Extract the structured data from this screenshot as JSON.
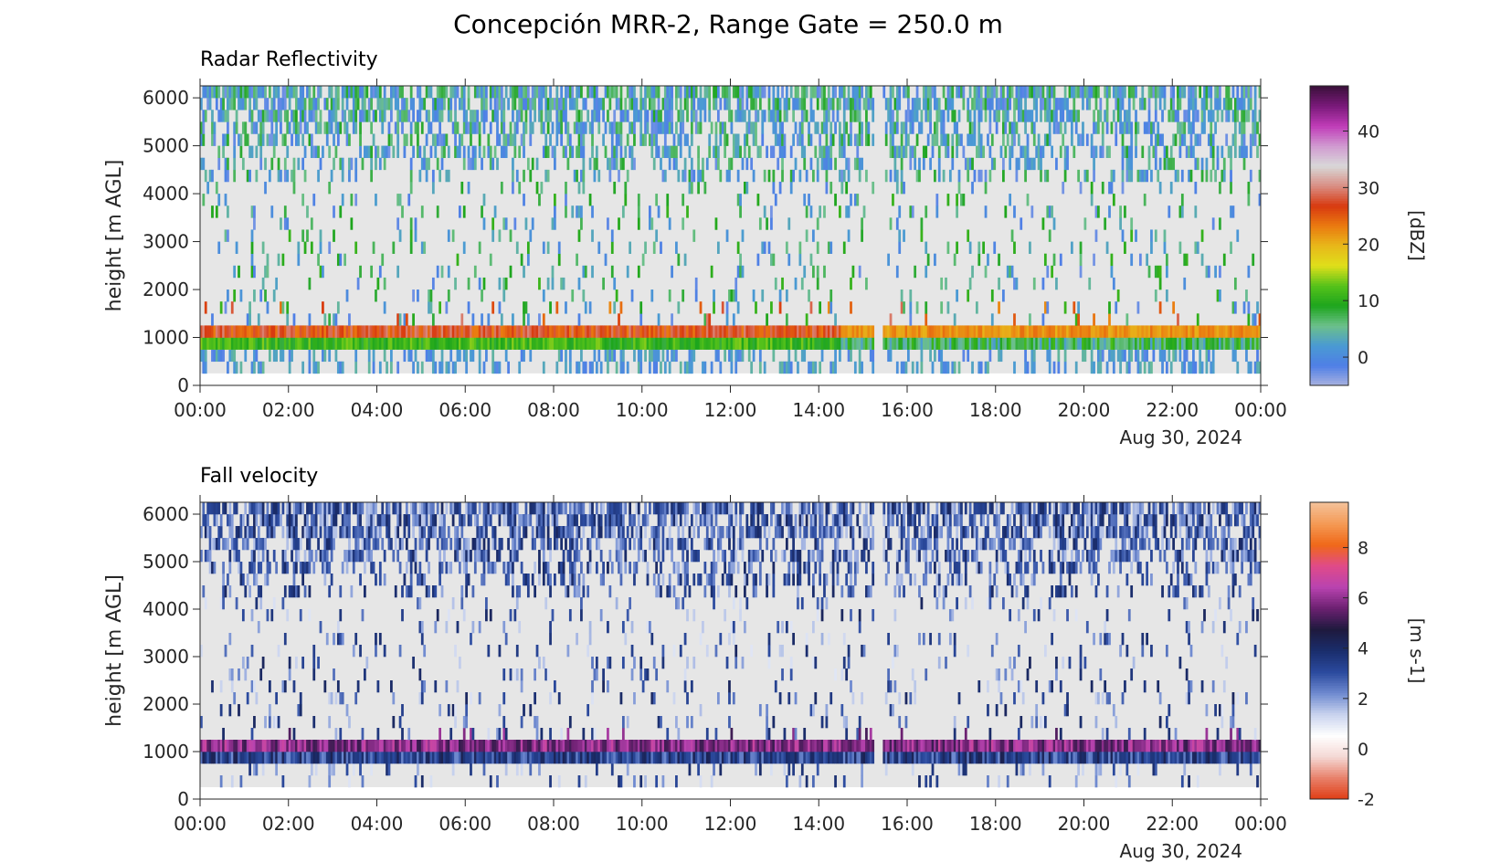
{
  "figure": {
    "title": "Concepción MRR-2, Range Gate = 250.0 m"
  },
  "chart_data": [
    {
      "type": "heatmap",
      "title": "Radar Reflectivity",
      "xlabel": "",
      "ylabel": "height [m AGL]",
      "date_label": "Aug 30, 2024",
      "x_ticks": [
        "00:00",
        "02:00",
        "04:00",
        "06:00",
        "08:00",
        "10:00",
        "12:00",
        "14:00",
        "16:00",
        "18:00",
        "20:00",
        "22:00",
        "00:00"
      ],
      "x_range_hours": [
        0,
        24
      ],
      "y_ticks": [
        0,
        1000,
        2000,
        3000,
        4000,
        5000,
        6000
      ],
      "ylim": [
        0,
        6250
      ],
      "data_height_range": [
        250,
        6250
      ],
      "data_gap_hours": [
        15.25,
        15.45
      ],
      "colorbar": {
        "label": "[dBZ]",
        "ticks": [
          0,
          10,
          20,
          30,
          40
        ],
        "range": [
          -5,
          48
        ],
        "colors": [
          "#a9b2e0",
          "#4f7fe6",
          "#4a9ad3",
          "#6cc08a",
          "#1da51d",
          "#56c21a",
          "#dfdf1a",
          "#e8b81a",
          "#ea7a10",
          "#d83a10",
          "#d98e84",
          "#d8d8d8",
          "#d09ad0",
          "#c03cb8",
          "#7a1a7a",
          "#3a103a"
        ]
      },
      "layers": [
        {
          "name": "melting-layer-bright-band",
          "height_m": [
            1000,
            1250
          ],
          "value_dBZ_typical": 25
        },
        {
          "name": "below-melting-layer-rain",
          "height_m": [
            750,
            1000
          ],
          "value_dBZ_typical": 10
        },
        {
          "name": "near-surface-drizzle",
          "height_m": [
            250,
            750
          ],
          "value_dBZ_typical": 2
        },
        {
          "name": "upper-snow-echoes",
          "height_m": [
            4250,
            6250
          ],
          "value_dBZ_typical": 3
        }
      ],
      "background": "#e6e6e6"
    },
    {
      "type": "heatmap",
      "title": "Fall velocity",
      "xlabel": "",
      "ylabel": "height [m AGL]",
      "date_label": "Aug 30, 2024",
      "x_ticks": [
        "00:00",
        "02:00",
        "04:00",
        "06:00",
        "08:00",
        "10:00",
        "12:00",
        "14:00",
        "16:00",
        "18:00",
        "20:00",
        "22:00",
        "00:00"
      ],
      "x_range_hours": [
        0,
        24
      ],
      "y_ticks": [
        0,
        1000,
        2000,
        3000,
        4000,
        5000,
        6000
      ],
      "ylim": [
        0,
        6250
      ],
      "data_height_range": [
        250,
        6250
      ],
      "data_gap_hours": [
        15.25,
        15.45
      ],
      "colorbar": {
        "label": "[m s-1]",
        "ticks": [
          -2,
          0,
          2,
          4,
          6,
          8
        ],
        "range": [
          -2,
          9.8
        ],
        "colors": [
          "#e03c14",
          "#e8806a",
          "#f4d8d4",
          "#ffffff",
          "#c9d3ee",
          "#6f8ad0",
          "#2b4a9e",
          "#1a2d6c",
          "#1e1a3e",
          "#6b2070",
          "#b843b0",
          "#e04a8a",
          "#f06818",
          "#f49a55",
          "#f4c29a"
        ]
      },
      "layers": [
        {
          "name": "melting-layer",
          "height_m": [
            1000,
            1250
          ],
          "value_ms_typical": 5.5
        },
        {
          "name": "rain-layer",
          "height_m": [
            750,
            1000
          ],
          "value_ms_typical": 3.0
        },
        {
          "name": "upper-snow",
          "height_m": [
            4250,
            6250
          ],
          "value_ms_typical": 3.0
        }
      ],
      "background": "#e6e6e6"
    }
  ]
}
